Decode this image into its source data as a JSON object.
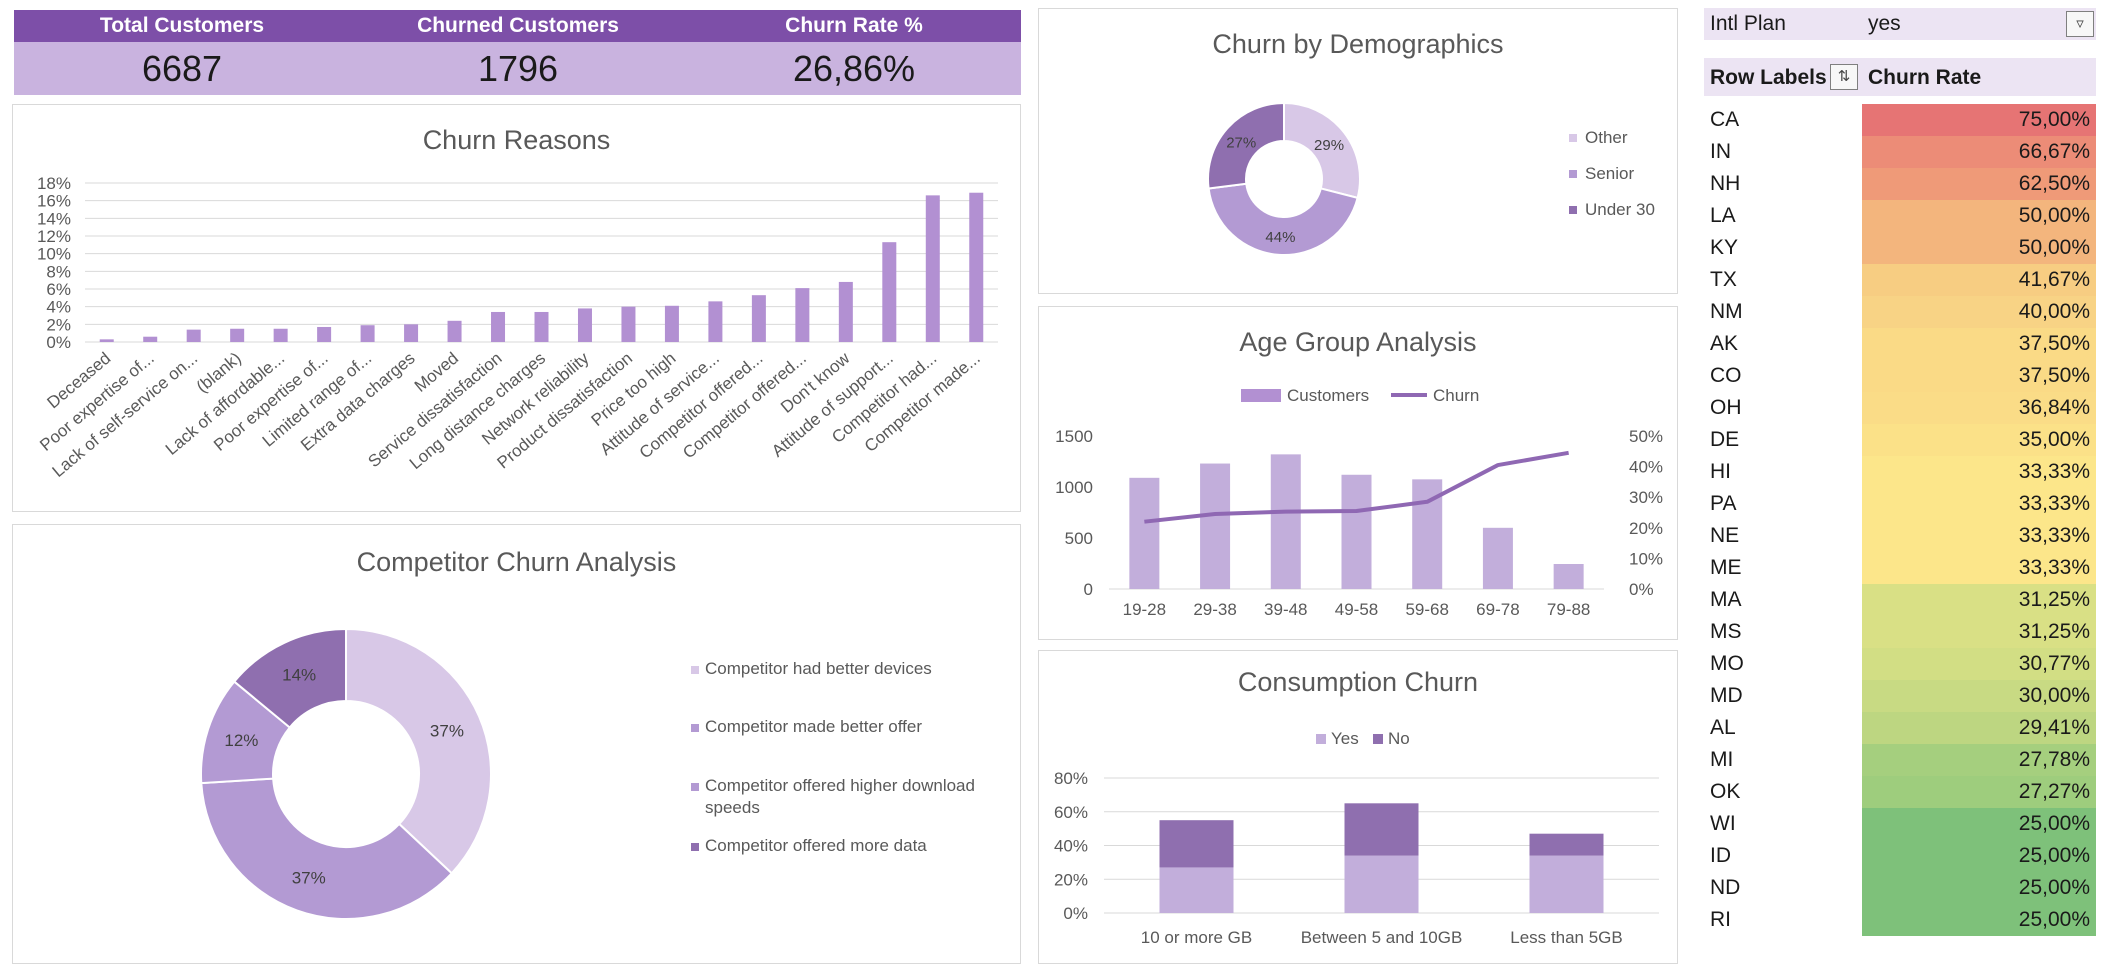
{
  "kpis": {
    "total_customers_label": "Total Customers",
    "total_customers_value": "6687",
    "churned_customers_label": "Churned Customers",
    "churned_customers_value": "1796",
    "churn_rate_label": "Churn Rate %",
    "churn_rate_value": "26,86%"
  },
  "colors": {
    "kpi_header": "#7d4fa8",
    "kpi_values": "#c9b3df",
    "bar": "#b290d2",
    "light": "#d8c8e7",
    "mid": "#b39ad3",
    "dark": "#8f6faf",
    "line": "#8f68b3"
  },
  "chart_data": [
    {
      "id": "churn_reasons",
      "type": "bar",
      "title": "Churn Reasons",
      "categories": [
        "Deceased",
        "Poor expertise of...",
        "Lack of self-service on...",
        "(blank)",
        "Lack of affordable...",
        "Poor expertise of...",
        "Limited range of...",
        "Extra data charges",
        "Moved",
        "Service dissatisfaction",
        "Long distance charges",
        "Network reliability",
        "Product dissatisfaction",
        "Price too high",
        "Attitude of service...",
        "Competitor offered...",
        "Competitor offered...",
        "Don't know",
        "Attitude of support...",
        "Competitor had...",
        "Competitor made..."
      ],
      "values": [
        0.3,
        0.6,
        1.4,
        1.5,
        1.5,
        1.7,
        1.9,
        2.0,
        2.4,
        3.4,
        3.4,
        3.8,
        4.0,
        4.1,
        4.6,
        5.3,
        6.1,
        6.8,
        11.3,
        16.6,
        16.9
      ],
      "ylim": [
        0,
        18
      ],
      "yticks": [
        "0%",
        "2%",
        "4%",
        "6%",
        "8%",
        "10%",
        "12%",
        "14%",
        "16%",
        "18%"
      ],
      "grid": true
    },
    {
      "id": "churn_by_demographics",
      "type": "pie",
      "title": "Churn by Demographics",
      "labels": [
        "Other",
        "Senior",
        "Under 30"
      ],
      "values": [
        29,
        44,
        27
      ],
      "value_labels": [
        "29%",
        "44%",
        "27%"
      ],
      "legend": "right"
    },
    {
      "id": "age_group_analysis",
      "type": "bar",
      "title": "Age Group Analysis",
      "categories": [
        "19-28",
        "29-38",
        "39-48",
        "49-58",
        "59-68",
        "69-78",
        "79-88"
      ],
      "series": [
        {
          "name": "Customers",
          "type": "bar",
          "values": [
            1090,
            1230,
            1320,
            1120,
            1075,
            600,
            245
          ]
        },
        {
          "name": "Churn",
          "type": "line",
          "axis": "secondary",
          "values": [
            22,
            24.5,
            25.3,
            25.5,
            28.5,
            40.5,
            44.5
          ]
        }
      ],
      "ylim": [
        0,
        1500
      ],
      "yticks": [
        "0",
        "500",
        "1000",
        "1500"
      ],
      "y2lim": [
        0,
        50
      ],
      "y2ticks": [
        "0%",
        "10%",
        "20%",
        "30%",
        "40%",
        "50%"
      ],
      "legend": "top"
    },
    {
      "id": "competitor_churn_analysis",
      "type": "pie",
      "title": "Competitor Churn Analysis",
      "labels": [
        "Competitor had better devices",
        "Competitor made better offer",
        "Competitor offered higher download speeds",
        "Competitor offered more data"
      ],
      "values": [
        37,
        37,
        12,
        14
      ],
      "value_labels": [
        "37%",
        "37%",
        "12%",
        "14%"
      ],
      "legend": "right"
    },
    {
      "id": "consumption_churn",
      "type": "bar",
      "stacked": true,
      "title": "Consumption Churn",
      "categories": [
        "10 or more GB",
        "Between 5 and 10GB",
        "Less than 5GB"
      ],
      "series": [
        {
          "name": "Yes",
          "values": [
            27,
            34,
            34
          ]
        },
        {
          "name": "No",
          "values": [
            28,
            31,
            13
          ]
        }
      ],
      "ylim": [
        0,
        80
      ],
      "yticks": [
        "0%",
        "20%",
        "40%",
        "60%",
        "80%"
      ],
      "legend": "top"
    }
  ],
  "pivot": {
    "filter_label": "Intl Plan",
    "filter_value": "yes",
    "row_labels_header": "Row Labels",
    "value_header": "Churn Rate",
    "rows": [
      {
        "state": "CA",
        "rate": "75,00%",
        "color": "#e67474"
      },
      {
        "state": "IN",
        "rate": "66,67%",
        "color": "#ec8c77"
      },
      {
        "state": "NH",
        "rate": "62,50%",
        "color": "#ef9a78"
      },
      {
        "state": "LA",
        "rate": "50,00%",
        "color": "#f3b57d"
      },
      {
        "state": "KY",
        "rate": "50,00%",
        "color": "#f3b57d"
      },
      {
        "state": "TX",
        "rate": "41,67%",
        "color": "#f7cd82"
      },
      {
        "state": "NM",
        "rate": "40,00%",
        "color": "#f8d385"
      },
      {
        "state": "AK",
        "rate": "37,50%",
        "color": "#fada86"
      },
      {
        "state": "CO",
        "rate": "37,50%",
        "color": "#fada86"
      },
      {
        "state": "OH",
        "rate": "36,84%",
        "color": "#fadc87"
      },
      {
        "state": "DE",
        "rate": "35,00%",
        "color": "#fbe188"
      },
      {
        "state": "HI",
        "rate": "33,33%",
        "color": "#fce68a"
      },
      {
        "state": "PA",
        "rate": "33,33%",
        "color": "#fce68a"
      },
      {
        "state": "NE",
        "rate": "33,33%",
        "color": "#fce68a"
      },
      {
        "state": "ME",
        "rate": "33,33%",
        "color": "#fce68a"
      },
      {
        "state": "MA",
        "rate": "31,25%",
        "color": "#d9e085"
      },
      {
        "state": "MS",
        "rate": "31,25%",
        "color": "#d9e085"
      },
      {
        "state": "MO",
        "rate": "30,77%",
        "color": "#d2de84"
      },
      {
        "state": "MD",
        "rate": "30,00%",
        "color": "#c8da83"
      },
      {
        "state": "AL",
        "rate": "29,41%",
        "color": "#bdd681"
      },
      {
        "state": "MI",
        "rate": "27,78%",
        "color": "#a5cf7e"
      },
      {
        "state": "OK",
        "rate": "27,27%",
        "color": "#9ecd7d"
      },
      {
        "state": "WI",
        "rate": "25,00%",
        "color": "#7ec17a"
      },
      {
        "state": "ID",
        "rate": "25,00%",
        "color": "#7ec17a"
      },
      {
        "state": "ND",
        "rate": "25,00%",
        "color": "#7ec17a"
      },
      {
        "state": "RI",
        "rate": "25,00%",
        "color": "#7ec17a"
      }
    ]
  }
}
